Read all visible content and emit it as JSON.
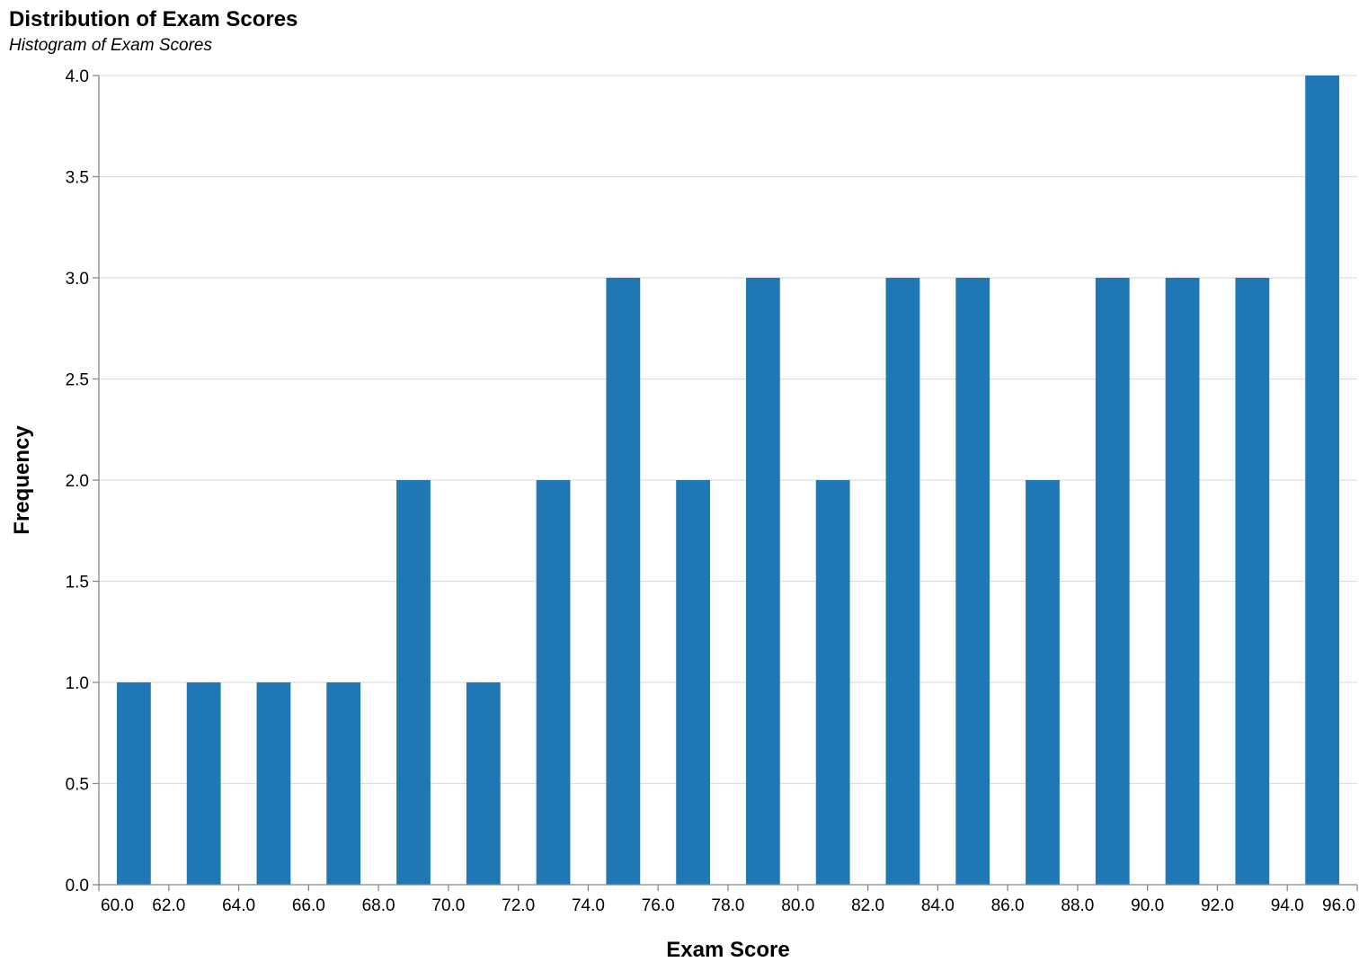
{
  "chart_data": {
    "type": "bar",
    "title": "Distribution of Exam Scores",
    "subtitle": "Histogram of Exam Scores",
    "xlabel": "Exam Score",
    "ylabel": "Frequency",
    "xlim": [
      60,
      96
    ],
    "ylim": [
      0,
      4
    ],
    "x_ticks": [
      "60.0",
      "62.0",
      "64.0",
      "66.0",
      "68.0",
      "70.0",
      "72.0",
      "74.0",
      "76.0",
      "78.0",
      "80.0",
      "82.0",
      "84.0",
      "86.0",
      "88.0",
      "90.0",
      "92.0",
      "94.0",
      "96.0"
    ],
    "y_ticks": [
      "0.0",
      "0.5",
      "1.0",
      "1.5",
      "2.0",
      "2.5",
      "3.0",
      "3.5",
      "4.0"
    ],
    "bin_width": 2,
    "bins": [
      {
        "start": 60,
        "end": 62,
        "value": 1
      },
      {
        "start": 62,
        "end": 64,
        "value": 1
      },
      {
        "start": 64,
        "end": 66,
        "value": 1
      },
      {
        "start": 66,
        "end": 68,
        "value": 1
      },
      {
        "start": 68,
        "end": 70,
        "value": 2
      },
      {
        "start": 70,
        "end": 72,
        "value": 1
      },
      {
        "start": 72,
        "end": 74,
        "value": 2
      },
      {
        "start": 74,
        "end": 76,
        "value": 3
      },
      {
        "start": 76,
        "end": 78,
        "value": 2
      },
      {
        "start": 78,
        "end": 80,
        "value": 3
      },
      {
        "start": 80,
        "end": 82,
        "value": 2
      },
      {
        "start": 82,
        "end": 84,
        "value": 3
      },
      {
        "start": 84,
        "end": 86,
        "value": 3
      },
      {
        "start": 86,
        "end": 88,
        "value": 2
      },
      {
        "start": 88,
        "end": 90,
        "value": 3
      },
      {
        "start": 90,
        "end": 92,
        "value": 3
      },
      {
        "start": 92,
        "end": 94,
        "value": 3
      },
      {
        "start": 94,
        "end": 96,
        "value": 4
      }
    ],
    "grid": true,
    "bar_color": "#1f77b4",
    "grid_color": "#dddddd",
    "axis_color": "#888888"
  }
}
